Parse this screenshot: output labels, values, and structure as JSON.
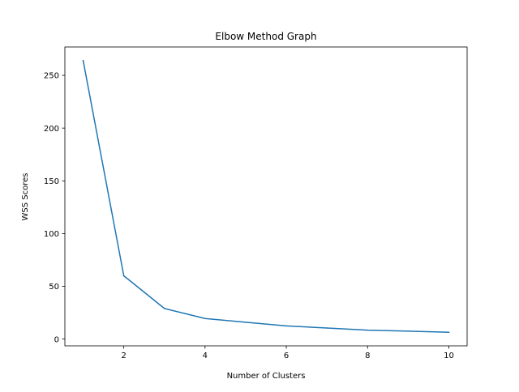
{
  "chart_data": {
    "type": "line",
    "title": "Elbow Method Graph",
    "xlabel": "Number of Clusters",
    "ylabel": "WSS Scores",
    "x": [
      1,
      2,
      3,
      4,
      5,
      6,
      7,
      8,
      9,
      10
    ],
    "series": [
      {
        "values": [
          264,
          60,
          29,
          19.5,
          16,
          12.5,
          10.5,
          8.5,
          7.5,
          6.5
        ]
      }
    ],
    "xlim": [
      0.55,
      10.45
    ],
    "ylim": [
      -6.4,
      276.9
    ],
    "xticks": [
      2,
      4,
      6,
      8,
      10
    ],
    "yticks": [
      0,
      50,
      100,
      150,
      200,
      250
    ],
    "xtick_labels": [
      "2",
      "4",
      "6",
      "8",
      "10"
    ],
    "ytick_labels": [
      "0",
      "50",
      "100",
      "150",
      "200",
      "250"
    ],
    "grid": false,
    "line_color": "#1f77b4"
  }
}
